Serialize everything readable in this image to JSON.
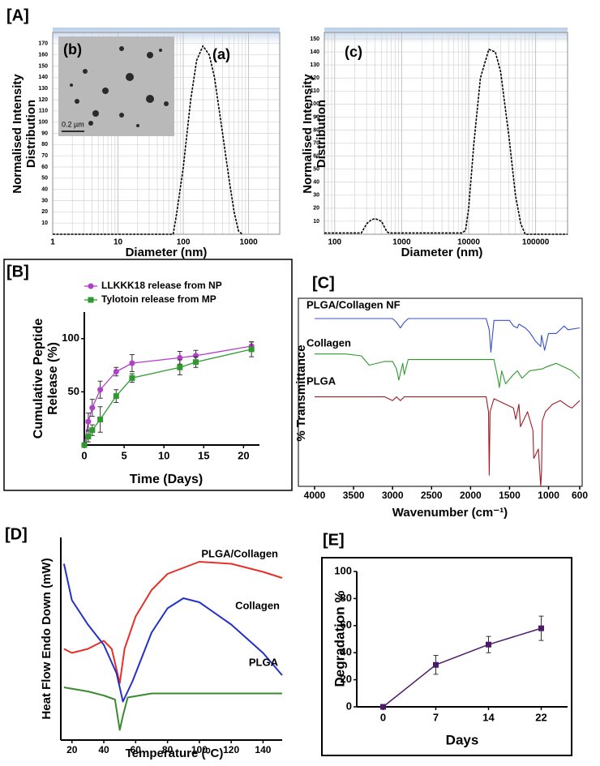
{
  "chart_data": [
    {
      "panel": "[A]",
      "type": "line",
      "title": "(a)",
      "xlabel": "Diameter (nm)",
      "ylabel": [
        "Normalised Intensity",
        "Distribution"
      ],
      "xscale": "log",
      "xlim": [
        1,
        3000
      ],
      "xticks": [
        1,
        10,
        100,
        1000
      ],
      "ylim": [
        0,
        180
      ],
      "yticks": [
        10,
        20,
        30,
        40,
        50,
        60,
        70,
        80,
        90,
        100,
        110,
        120,
        130,
        140,
        150,
        160,
        170
      ],
      "grid": true,
      "inset": {
        "label": "(b)",
        "scale_bar": "0.2 µm"
      },
      "series": [
        {
          "color": "#000000",
          "x": [
            1,
            60,
            70,
            80,
            100,
            130,
            160,
            200,
            250,
            300,
            400,
            500,
            600,
            700,
            800
          ],
          "values": [
            0,
            0,
            0,
            20,
            60,
            120,
            155,
            168,
            160,
            140,
            90,
            50,
            20,
            3,
            0
          ]
        }
      ]
    },
    {
      "type": "line",
      "title": "(c)",
      "xlabel": "Diameter (nm)",
      "ylabel": [
        "Normalised Intensity",
        "Distribution"
      ],
      "xscale": "log",
      "xlim": [
        70,
        300000
      ],
      "xticks": [
        100,
        1000,
        10000,
        100000
      ],
      "ylim": [
        0,
        155
      ],
      "yticks": [
        10,
        20,
        30,
        40,
        50,
        60,
        70,
        80,
        90,
        100,
        110,
        120,
        130,
        140,
        150
      ],
      "grid": true,
      "series": [
        {
          "color": "#000000",
          "x": [
            70,
            250,
            300,
            350,
            400,
            500,
            600,
            650,
            8000,
            9000,
            10000,
            12000,
            15000,
            20000,
            25000,
            30000,
            40000,
            50000,
            60000,
            70000,
            100000,
            300000
          ],
          "values": [
            1,
            1,
            8,
            11,
            12,
            10,
            2,
            1,
            1,
            3,
            20,
            70,
            120,
            142,
            140,
            125,
            75,
            30,
            8,
            0,
            0,
            0
          ]
        }
      ]
    },
    {
      "panel": "[B]",
      "type": "line",
      "xlabel": "Time (Days)",
      "ylabel": [
        "Cumulative Peptide",
        "Release (%)"
      ],
      "xlim": [
        0,
        22
      ],
      "xticks": [
        0,
        5,
        10,
        15,
        20
      ],
      "ylim": [
        0,
        125
      ],
      "yticks": [
        50,
        100
      ],
      "legend": "upper left",
      "x": [
        0,
        0.5,
        1,
        2,
        4,
        6,
        12,
        14,
        21
      ],
      "series": [
        {
          "name": "LLKKK18 release from NP",
          "color": "#b23ec9",
          "marker": "circle",
          "values": [
            0,
            22,
            35,
            52,
            69,
            77,
            82,
            84,
            93
          ],
          "errors": [
            2,
            8,
            8,
            8,
            4,
            8,
            6,
            5,
            4
          ]
        },
        {
          "name": "Tylotoin release from MP",
          "color": "#2e9a2e",
          "marker": "square",
          "values": [
            0,
            8,
            14,
            24,
            46,
            63,
            73,
            78,
            90
          ],
          "errors": [
            2,
            5,
            5,
            12,
            6,
            4,
            7,
            5,
            7
          ]
        }
      ]
    },
    {
      "panel": "[C]",
      "type": "line",
      "xlabel": "Wavenumber (cm⁻¹)",
      "ylabel": "% Transmittance",
      "xlim": [
        4000,
        600
      ],
      "xticks": [
        4000,
        3500,
        3000,
        2500,
        2000,
        1500,
        1000,
        600
      ],
      "ylim": [
        0,
        100
      ],
      "series": [
        {
          "name": "PLGA/Collagen NF",
          "color": "#3550c8",
          "x": [
            4000,
            3000,
            2950,
            2900,
            2850,
            2800,
            1800,
            1760,
            1740,
            1700,
            1500,
            1450,
            1400,
            1380,
            1300,
            1250,
            1200,
            1170,
            1100,
            1090,
            1050,
            1000,
            900,
            800,
            750,
            600
          ],
          "values": [
            90,
            90,
            88,
            85,
            88,
            90,
            90,
            84,
            72,
            89,
            89,
            86,
            85,
            87,
            85,
            83,
            80,
            78,
            75,
            81,
            73,
            82,
            82,
            86,
            84,
            85
          ]
        },
        {
          "name": "Collagen",
          "color": "#2e9a2e",
          "x": [
            4000,
            3600,
            3400,
            3300,
            3100,
            3000,
            2950,
            2920,
            2870,
            2850,
            2800,
            1700,
            1650,
            1630,
            1600,
            1550,
            1450,
            1400,
            1340,
            1240,
            1080,
            1030,
            900,
            700,
            600
          ],
          "values": [
            71,
            71,
            70,
            65,
            67,
            67,
            63,
            57,
            66,
            60,
            68,
            68,
            58,
            53,
            62,
            55,
            60,
            62,
            58,
            62,
            63,
            64,
            66,
            62,
            58
          ]
        },
        {
          "name": "PLGA",
          "color": "#a01c24",
          "x": [
            4000,
            3100,
            3000,
            2950,
            2900,
            2850,
            1800,
            1770,
            1760,
            1750,
            1700,
            1450,
            1420,
            1380,
            1360,
            1270,
            1200,
            1190,
            1130,
            1100,
            1090,
            1080,
            1040,
            950,
            850,
            750,
            700,
            600
          ],
          "values": [
            48,
            48,
            46,
            48,
            46,
            48,
            48,
            40,
            6,
            40,
            47,
            42,
            36,
            44,
            32,
            40,
            30,
            15,
            20,
            0,
            8,
            35,
            40,
            44,
            46,
            43,
            42,
            46
          ]
        }
      ]
    },
    {
      "panel": "[D]",
      "type": "line",
      "xlabel": "Temperature (⁰C)",
      "ylabel": "Heat Flow Endo Down (mW)",
      "xlim": [
        13,
        152
      ],
      "xticks": [
        20,
        40,
        60,
        80,
        100,
        120,
        140
      ],
      "ylim": [
        0,
        100
      ],
      "series": [
        {
          "name": "PLGA/Collagen",
          "color": "#e8302a",
          "x": [
            15,
            20,
            30,
            40,
            45,
            50,
            53,
            60,
            70,
            80,
            100,
            120,
            140,
            152
          ],
          "values": [
            45,
            43,
            45,
            49,
            45,
            28,
            45,
            61,
            74,
            82,
            88,
            87,
            83,
            80
          ]
        },
        {
          "name": "Collagen",
          "color": "#2431c8",
          "x": [
            15,
            20,
            30,
            40,
            48,
            52,
            58,
            70,
            80,
            90,
            100,
            120,
            140,
            152
          ],
          "values": [
            87,
            69,
            57,
            47,
            33,
            19,
            29,
            53,
            65,
            70,
            68,
            57,
            43,
            32
          ]
        },
        {
          "name": "PLGA",
          "color": "#3a8a2e",
          "x": [
            15,
            30,
            40,
            47,
            50,
            52,
            55,
            70,
            100,
            152
          ],
          "values": [
            26,
            24,
            22,
            20,
            5,
            12,
            21,
            23,
            23,
            23
          ]
        }
      ]
    },
    {
      "panel": "[E]",
      "type": "line",
      "xlabel": "Days",
      "ylabel": "Degradation %",
      "categories": [
        "0",
        "7",
        "14",
        "22"
      ],
      "ylim": [
        0,
        100
      ],
      "yticks": [
        0,
        20,
        40,
        60,
        80,
        100
      ],
      "series": [
        {
          "color": "#4b1a6b",
          "marker": "square",
          "values": [
            0,
            31,
            46,
            58
          ],
          "errors": [
            0,
            7,
            6,
            9
          ]
        }
      ]
    }
  ]
}
